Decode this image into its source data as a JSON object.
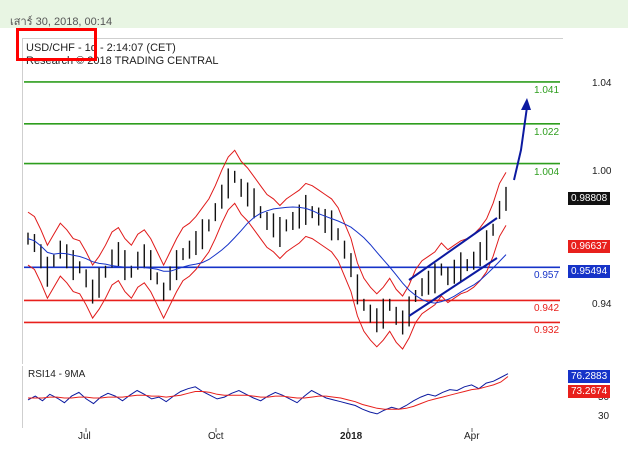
{
  "top_bar": {
    "date_text": "เสาร์ 30, 2018, 00:14"
  },
  "chart_header": {
    "instrument_line": "USD/CHF - 1d - 2:14:07 (CET)",
    "copyright_line": "Research © 2018 TRADING CENTRAL"
  },
  "colors": {
    "green": "#2e9e1e",
    "red": "#e8201c",
    "blue": "#1633c8",
    "navy": "#0c1aa0",
    "price": "#111111",
    "band": "#e01a1a"
  },
  "chart_data": {
    "type": "line",
    "subtype": "candlestick-with-levels",
    "x_ticks": [
      "Jul",
      "Oct",
      "2018",
      "Apr"
    ],
    "y_ticks": [
      1.04,
      1.0,
      0.94
    ],
    "ylim": [
      0.915,
      1.06
    ],
    "levels": [
      {
        "value": 1.041,
        "label": "1.041",
        "color": "green"
      },
      {
        "value": 1.022,
        "label": "1.022",
        "color": "green"
      },
      {
        "value": 1.004,
        "label": "1.004",
        "color": "green"
      },
      {
        "value": 0.957,
        "label": "0.957",
        "color": "blue"
      },
      {
        "value": 0.942,
        "label": "0.942",
        "color": "red"
      },
      {
        "value": 0.932,
        "label": "0.932",
        "color": "red"
      }
    ],
    "price_tags": [
      {
        "value": 0.98808,
        "label": "0.98808",
        "bg": "#111111"
      },
      {
        "value": 0.96637,
        "label": "0.96637",
        "bg": "#e8201c"
      },
      {
        "value": 0.95494,
        "label": "0.95494",
        "bg": "#1633c8"
      }
    ],
    "close_approx": [
      0.97,
      0.968,
      0.962,
      0.955,
      0.96,
      0.965,
      0.962,
      0.958,
      0.957,
      0.952,
      0.946,
      0.95,
      0.955,
      0.961,
      0.963,
      0.958,
      0.955,
      0.96,
      0.962,
      0.958,
      0.952,
      0.946,
      0.952,
      0.958,
      0.963,
      0.965,
      0.968,
      0.972,
      0.976,
      0.982,
      0.989,
      0.995,
      0.998,
      0.993,
      0.99,
      0.986,
      0.982,
      0.978,
      0.976,
      0.973,
      0.976,
      0.978,
      0.98,
      0.983,
      0.982,
      0.98,
      0.978,
      0.976,
      0.972,
      0.965,
      0.958,
      0.947,
      0.94,
      0.936,
      0.933,
      0.936,
      0.94,
      0.935,
      0.932,
      0.937,
      0.944,
      0.948,
      0.95,
      0.952,
      0.956,
      0.953,
      0.955,
      0.957,
      0.958,
      0.96,
      0.963,
      0.967,
      0.974,
      0.983,
      0.988
    ],
    "rsi": {
      "title": "RSI14 - 9MA",
      "ylim": [
        20,
        80
      ],
      "y_ticks": [
        50,
        30
      ],
      "rsi_label": "76.2883",
      "ma_label": "73.2674",
      "rsi_values": [
        48,
        52,
        47,
        54,
        50,
        45,
        52,
        56,
        49,
        44,
        51,
        55,
        52,
        47,
        53,
        58,
        54,
        49,
        51,
        46,
        52,
        57,
        60,
        62,
        57,
        53,
        49,
        51,
        55,
        58,
        54,
        50,
        47,
        52,
        56,
        53,
        49,
        45,
        52,
        58,
        54,
        50,
        48,
        46,
        44,
        42,
        38,
        35,
        33,
        37,
        40,
        38,
        42,
        47,
        51,
        54,
        52,
        56,
        59,
        58,
        62,
        64,
        60,
        66,
        68,
        72,
        76
      ],
      "ma_values": [
        50,
        50,
        50,
        51,
        51,
        50,
        50,
        51,
        51,
        50,
        50,
        51,
        51,
        51,
        52,
        53,
        53,
        52,
        52,
        51,
        52,
        53,
        55,
        57,
        57,
        56,
        54,
        53,
        53,
        53,
        53,
        52,
        51,
        51,
        52,
        52,
        51,
        50,
        50,
        51,
        52,
        52,
        51,
        50,
        48,
        46,
        43,
        41,
        39,
        38,
        38,
        38,
        39,
        41,
        44,
        47,
        49,
        51,
        53,
        55,
        57,
        59,
        60,
        62,
        64,
        67,
        73
      ]
    }
  }
}
